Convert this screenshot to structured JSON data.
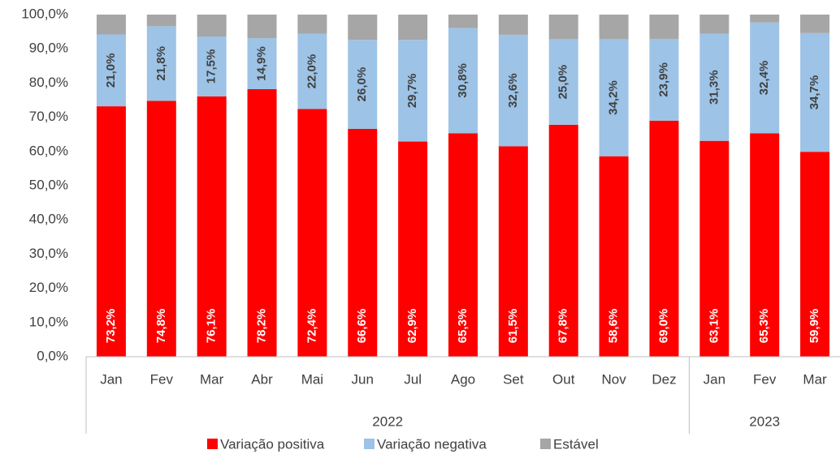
{
  "chart_data": {
    "type": "stacked_bar",
    "categories": [
      "Jan",
      "Fev",
      "Mar",
      "Abr",
      "Mai",
      "Jun",
      "Jul",
      "Ago",
      "Set",
      "Out",
      "Nov",
      "Dez",
      "Jan",
      "Fev",
      "Mar"
    ],
    "x_groups": [
      {
        "label": "2022",
        "count": 12
      },
      {
        "label": "2023",
        "count": 3
      }
    ],
    "series": [
      {
        "name": "Variação positiva",
        "color": "#ff0000",
        "label_color": "#ffffff",
        "values": [
          73.2,
          74.8,
          76.1,
          78.2,
          72.4,
          66.6,
          62.9,
          65.3,
          61.5,
          67.8,
          58.6,
          69.0,
          63.1,
          65.3,
          59.9
        ],
        "value_labels": [
          "73,2%",
          "74,8%",
          "76,1%",
          "78,2%",
          "72,4%",
          "66,6%",
          "62,9%",
          "65,3%",
          "61,5%",
          "67,8%",
          "58,6%",
          "69,0%",
          "63,1%",
          "65,3%",
          "59,9%"
        ]
      },
      {
        "name": "Variação negativa",
        "color": "#9dc3e6",
        "label_color": "#404040",
        "values": [
          21.0,
          21.8,
          17.5,
          14.9,
          22.0,
          26.0,
          29.7,
          30.8,
          32.6,
          25.0,
          34.2,
          23.9,
          31.3,
          32.4,
          34.7
        ],
        "value_labels": [
          "21,0%",
          "21,8%",
          "17,5%",
          "14,9%",
          "22,0%",
          "26,0%",
          "29,7%",
          "30,8%",
          "32,6%",
          "25,0%",
          "34,2%",
          "23,9%",
          "31,3%",
          "32,4%",
          "34,7%"
        ]
      },
      {
        "name": "Estável",
        "color": "#a6a6a6",
        "values": [
          5.8,
          3.4,
          6.4,
          6.9,
          5.6,
          7.4,
          7.4,
          3.9,
          5.9,
          7.2,
          7.2,
          7.1,
          5.6,
          2.3,
          5.4
        ]
      }
    ],
    "ylim": [
      0,
      100
    ],
    "yticks": [
      {
        "value": 0,
        "label": "0,0%"
      },
      {
        "value": 10,
        "label": "10,0%"
      },
      {
        "value": 20,
        "label": "20,0%"
      },
      {
        "value": 30,
        "label": "30,0%"
      },
      {
        "value": 40,
        "label": "40,0%"
      },
      {
        "value": 50,
        "label": "50,0%"
      },
      {
        "value": 60,
        "label": "60,0%"
      },
      {
        "value": 70,
        "label": "70,0%"
      },
      {
        "value": 80,
        "label": "80,0%"
      },
      {
        "value": 90,
        "label": "90,0%"
      },
      {
        "value": 100,
        "label": "100,0%"
      }
    ],
    "legend": "bottom"
  }
}
